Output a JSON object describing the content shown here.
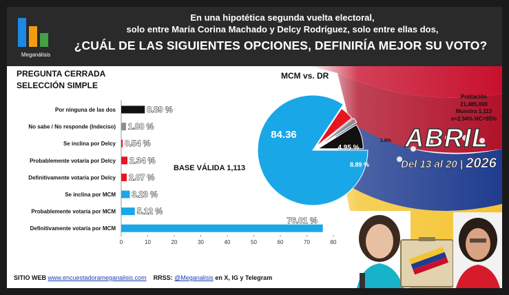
{
  "header": {
    "logo_text": "Meganálisis",
    "line1": "En una hipotética segunda vuelta electoral,",
    "line2": "solo entre María Corina Machado y Delcy Rodríguez, solo entre ellas dos,",
    "question": "¿CUÁL DE LAS SIGUIENTES OPCIONES, DEFINIRÍA MEJOR SU VOTO?"
  },
  "question_type": {
    "line1": "PREGUNTA  CERRADA",
    "line2": "SELECCIÓN SIMPLE"
  },
  "base": "BASE VÁLIDA 1,113",
  "pie_title": "MCM vs. DR",
  "sample": {
    "line1": "Población",
    "line2": "21,485,000",
    "line3": "Muestra 1,113",
    "line4": "e=2.94%  NC=95%"
  },
  "period": {
    "month": "ABRIL",
    "dates": "Del 13 al 20 |",
    "year": "2026"
  },
  "footer": {
    "web_label": "SITIO WEB",
    "web_link": "www.encuestadorameganalisis.com",
    "rrss_label": "RRSS:",
    "rrss_handle": "@Meganalisis",
    "rrss_suffix": "en X, IG y Telegram"
  },
  "colors": {
    "black_bar": "#111111",
    "gray_bar": "#8c8c8c",
    "red": "#e8141e",
    "blue": "#1aa7e8",
    "header_bg": "#2a2a2a"
  },
  "chart_data": [
    {
      "type": "bar",
      "orientation": "horizontal",
      "categories": [
        "Por ninguna de las dos",
        "No sabe / No responde (Indeciso)",
        "Se inclina por Delcy",
        "Probablemente votaría por Delcy",
        "Definitivamente votaría por Delcy",
        "Se inclina por MCM",
        "Probablemente votaría por MCM",
        "Definitivamente votaría por MCM"
      ],
      "values": [
        8.89,
        1.8,
        0.54,
        2.34,
        2.07,
        3.23,
        5.12,
        76.01
      ],
      "labels": [
        "8.89 %",
        "1.80 %",
        "0.54 %",
        "2.34 %",
        "2.07 %",
        "3.23 %",
        "5.12 %",
        "76.01 %"
      ],
      "colors": [
        "#111111",
        "#8c8c8c",
        "#e8141e",
        "#e8141e",
        "#e8141e",
        "#1aa7e8",
        "#1aa7e8",
        "#1aa7e8"
      ],
      "xlim": [
        0,
        80
      ],
      "xticks": [
        "0",
        "10",
        "20",
        "30",
        "40",
        "50",
        "60",
        "70",
        "80"
      ]
    },
    {
      "type": "pie",
      "title": "MCM vs. DR",
      "values": [
        84.36,
        4.95,
        1.8,
        8.89
      ],
      "labels": [
        "84.36",
        "4.95 %",
        "1.8%",
        "8.89 %"
      ],
      "colors": [
        "#1aa7e8",
        "#e8141e",
        "#8c8c8c",
        "#111111"
      ]
    }
  ]
}
